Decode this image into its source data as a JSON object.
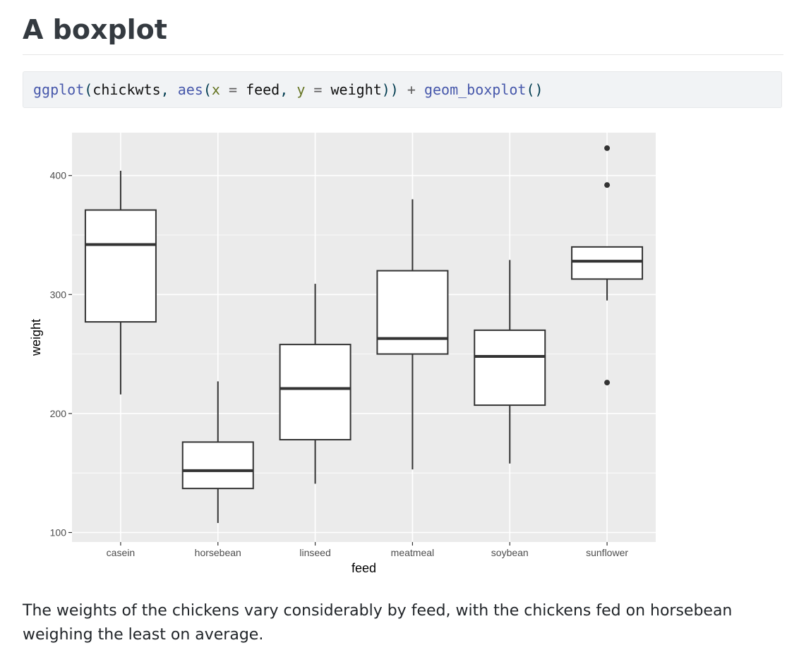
{
  "heading": "A boxplot",
  "code": {
    "tokens": [
      {
        "text": "ggplot",
        "kind": "fn"
      },
      {
        "text": "(",
        "kind": "pun"
      },
      {
        "text": "chickwts",
        "kind": "var"
      },
      {
        "text": ", ",
        "kind": "pun"
      },
      {
        "text": "aes",
        "kind": "fn"
      },
      {
        "text": "(",
        "kind": "pun"
      },
      {
        "text": "x",
        "kind": "arg"
      },
      {
        "text": " = ",
        "kind": "op"
      },
      {
        "text": "feed",
        "kind": "var"
      },
      {
        "text": ", ",
        "kind": "pun"
      },
      {
        "text": "y",
        "kind": "arg"
      },
      {
        "text": " = ",
        "kind": "op"
      },
      {
        "text": "weight",
        "kind": "var"
      },
      {
        "text": "))",
        "kind": "pun"
      },
      {
        "text": " + ",
        "kind": "op"
      },
      {
        "text": "geom_boxplot",
        "kind": "fn"
      },
      {
        "text": "()",
        "kind": "pun"
      }
    ]
  },
  "chart_data": {
    "type": "boxplot",
    "title": "",
    "xlabel": "feed",
    "ylabel": "weight",
    "ylim": [
      92,
      436
    ],
    "yticks": [
      100,
      200,
      300,
      400
    ],
    "categories": [
      "casein",
      "horsebean",
      "linseed",
      "meatmeal",
      "soybean",
      "sunflower"
    ],
    "boxes": [
      {
        "category": "casein",
        "whisker_low": 216,
        "q1": 277,
        "median": 342,
        "q3": 371,
        "whisker_high": 404,
        "outliers": []
      },
      {
        "category": "horsebean",
        "whisker_low": 108,
        "q1": 137,
        "median": 152,
        "q3": 176,
        "whisker_high": 227,
        "outliers": []
      },
      {
        "category": "linseed",
        "whisker_low": 141,
        "q1": 178,
        "median": 221,
        "q3": 258,
        "whisker_high": 309,
        "outliers": []
      },
      {
        "category": "meatmeal",
        "whisker_low": 153,
        "q1": 250,
        "median": 263,
        "q3": 320,
        "whisker_high": 380,
        "outliers": []
      },
      {
        "category": "soybean",
        "whisker_low": 158,
        "q1": 207,
        "median": 248,
        "q3": 270,
        "whisker_high": 329,
        "outliers": []
      },
      {
        "category": "sunflower",
        "whisker_low": 295,
        "q1": 313,
        "median": 328,
        "q3": 340,
        "whisker_high": 340,
        "outliers": [
          226,
          392,
          423
        ]
      }
    ],
    "colors": {
      "panel": "#ebebeb",
      "gridline": "#ffffff",
      "box_fill": "#ffffff",
      "box_line": "#333333",
      "tick_text": "#4d4d4d"
    },
    "grid": true,
    "legend": "none"
  },
  "caption": "The weights of the chickens vary considerably by feed, with the chickens fed on horsebean weighing the least on average."
}
